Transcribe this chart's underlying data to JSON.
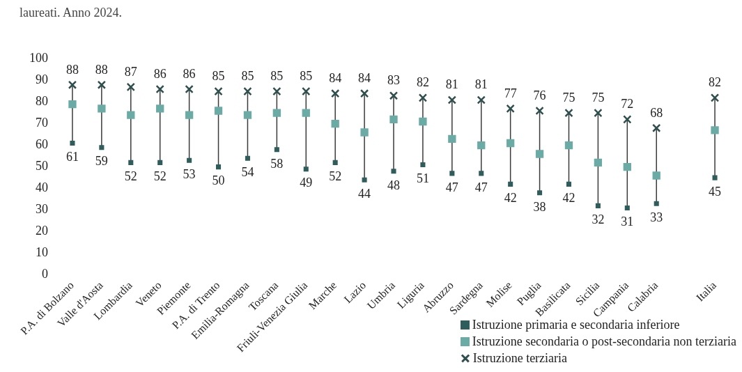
{
  "chart_data": {
    "type": "scatter",
    "title": "laureati. Anno 2024.",
    "categories": [
      "P.A. di Bolzano",
      "Valle d'Aosta",
      "Lombardia",
      "Veneto",
      "Piemonte",
      "P.A. di Trento",
      "Emilia-Romagna",
      "Toscana",
      "Friuli-Venezia Giulia",
      "Marche",
      "Lazio",
      "Umbria",
      "Liguria",
      "Abruzzo",
      "Sardegna",
      "Molise",
      "Puglia",
      "Basilicata",
      "Sicilia",
      "Campania",
      "Calabria",
      null,
      "Italia"
    ],
    "series": [
      {
        "name": "Istruzione primaria e secondaria inferiore",
        "color": "#2e5d5b",
        "marker": "square",
        "values": [
          61,
          59,
          52,
          52,
          53,
          50,
          54,
          58,
          49,
          52,
          44,
          48,
          51,
          47,
          47,
          42,
          38,
          42,
          32,
          31,
          33,
          null,
          45
        ],
        "value_labels": [
          "61",
          "59",
          "52",
          "52",
          "53",
          "50",
          "54",
          "58",
          "49",
          "52",
          "44",
          "48",
          "51",
          "47",
          "47",
          "42",
          "38",
          "42",
          "32",
          "31",
          "33",
          null,
          "45"
        ]
      },
      {
        "name": "Istruzione secondaria o post-secondaria non terziaria",
        "color": "#6aaba5",
        "marker": "square",
        "values": [
          79,
          77,
          74,
          77,
          74,
          76,
          74,
          75,
          75,
          70,
          66,
          72,
          71,
          63,
          60,
          61,
          56,
          60,
          52,
          50,
          46,
          null,
          67
        ]
      },
      {
        "name": "Istruzione terziaria",
        "color": "#2f4f4f",
        "marker": "cross",
        "values": [
          88,
          88,
          87,
          86,
          86,
          85,
          85,
          85,
          85,
          84,
          84,
          83,
          82,
          81,
          81,
          77,
          76,
          75,
          75,
          72,
          68,
          null,
          82
        ],
        "value_labels": [
          "88",
          "88",
          "87",
          "86",
          "86",
          "85",
          "85",
          "85",
          "85",
          "84",
          "84",
          "83",
          "82",
          "81",
          "81",
          "77",
          "76",
          "75",
          "75",
          "72",
          "68",
          null,
          "82"
        ]
      }
    ],
    "ylim": [
      0,
      100
    ],
    "yticks": [
      0,
      10,
      20,
      30,
      40,
      50,
      60,
      70,
      80,
      90,
      100
    ],
    "grid": false,
    "legend": "bottom right"
  }
}
